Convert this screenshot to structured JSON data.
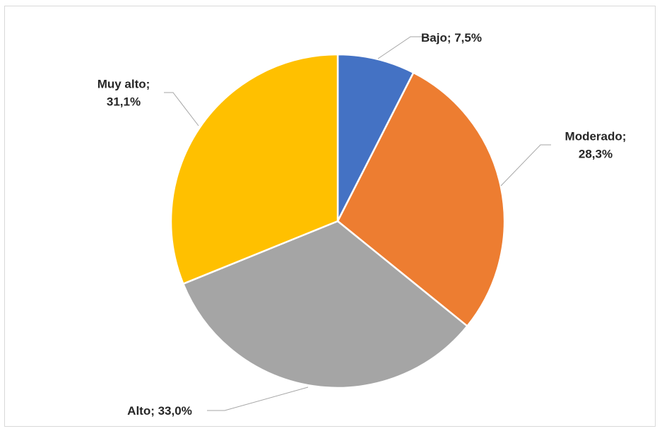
{
  "chart_data": {
    "type": "pie",
    "categories": [
      "Bajo",
      "Moderado",
      "Alto",
      "Muy alto"
    ],
    "values": [
      7.5,
      28.3,
      33.0,
      31.1
    ],
    "colors": [
      "#4472c4",
      "#ed7d31",
      "#a5a5a5",
      "#ffc000"
    ],
    "data_labels": [
      [
        "Bajo; 7,5%"
      ],
      [
        "Moderado;",
        "28,3%"
      ],
      [
        "Alto; 33,0%"
      ],
      [
        "Muy alto;",
        "31,1%"
      ]
    ],
    "title": "",
    "legend": "none"
  }
}
